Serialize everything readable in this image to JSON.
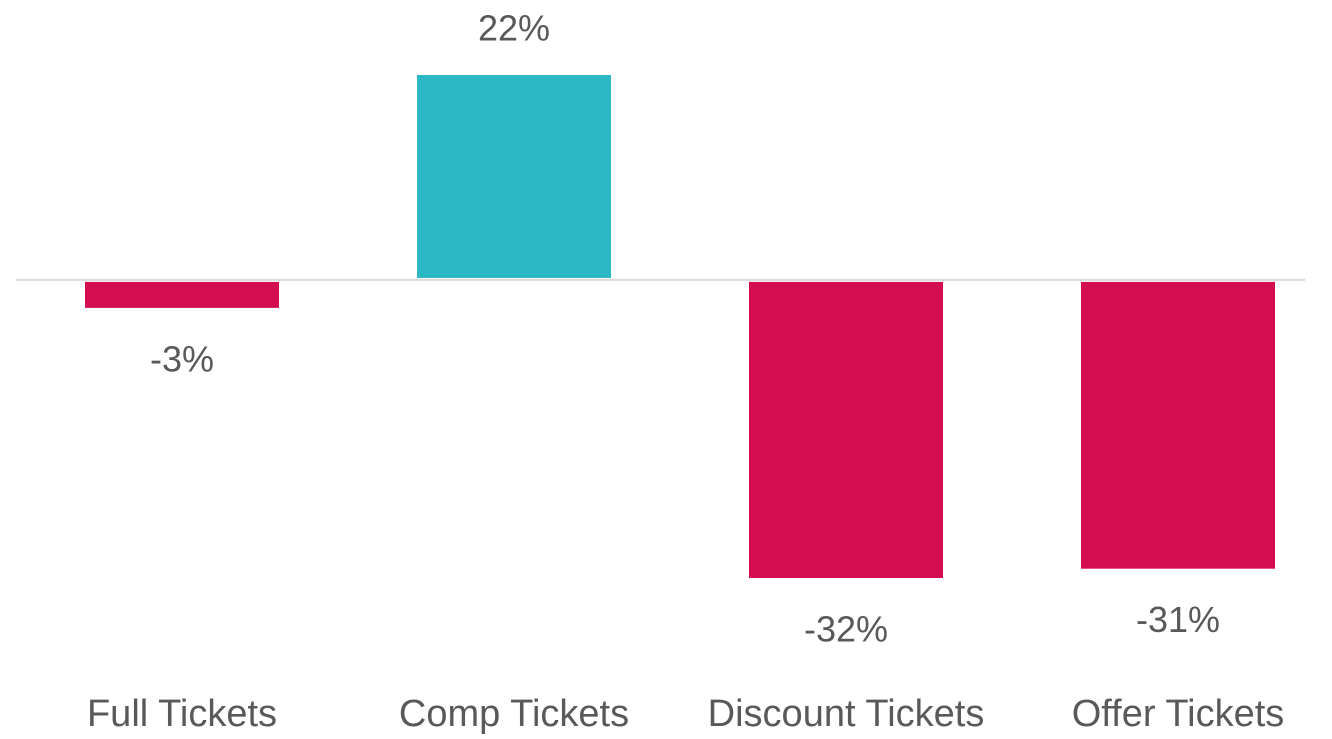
{
  "chart_data": {
    "type": "bar",
    "categories": [
      "Full Tickets",
      "Comp Tickets",
      "Discount Tickets",
      "Offer Tickets"
    ],
    "values": [
      -3,
      22,
      -32,
      -31
    ],
    "value_labels": [
      "-3%",
      "22%",
      "-32%",
      "-31%"
    ],
    "colors": [
      "#d40d50",
      "#2bb7c4",
      "#d40d50",
      "#d40d50"
    ]
  }
}
